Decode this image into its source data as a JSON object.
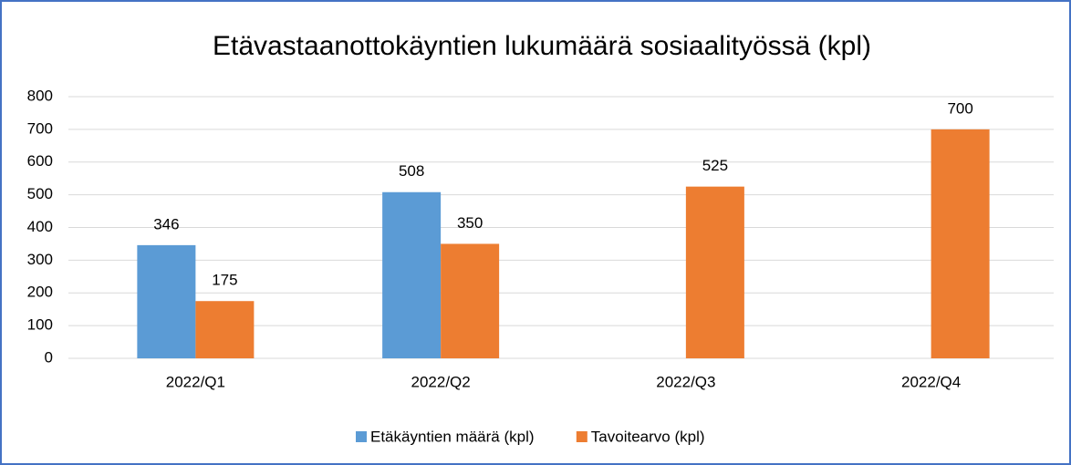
{
  "chart_data": {
    "type": "bar",
    "title": "Etävastaanottokäyntien lukumäärä sosiaalityössä (kpl)",
    "categories": [
      "2022/Q1",
      "2022/Q2",
      "2022/Q3",
      "2022/Q4"
    ],
    "series": [
      {
        "name": "Etäkäyntien määrä (kpl)",
        "color": "#5b9bd5",
        "values": [
          346,
          508,
          null,
          null
        ]
      },
      {
        "name": "Tavoitearvo (kpl)",
        "color": "#ed7d31",
        "values": [
          175,
          350,
          525,
          700
        ]
      }
    ],
    "ylim": [
      0,
      800
    ],
    "yticks": [
      0,
      100,
      200,
      300,
      400,
      500,
      600,
      700,
      800
    ],
    "grid": true,
    "legend": "bottom"
  }
}
